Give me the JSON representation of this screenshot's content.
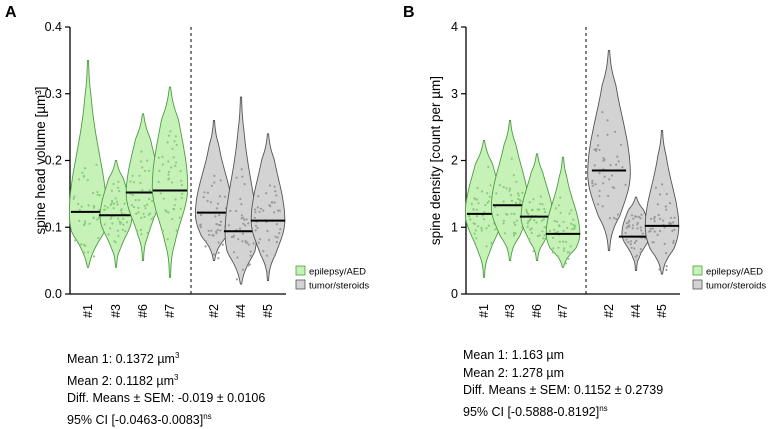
{
  "colors": {
    "epilepsy": "#c6f2b8",
    "epilepsy_stroke": "#4c9c40",
    "tumor": "#d3d3d3",
    "tumor_stroke": "#555555",
    "dot_green": "#8acb7c",
    "dot_grey": "#999999"
  },
  "chart_data": [
    {
      "panel": "A",
      "type": "violin",
      "ylabel": "spine head volume [µm³]",
      "ylim": [
        0,
        0.4
      ],
      "yticks": [
        "0.0",
        "0.1",
        "0.2",
        "0.3",
        "0.4"
      ],
      "ytick_values": [
        0,
        0.1,
        0.2,
        0.3,
        0.4
      ],
      "legend": [
        {
          "label": "epilepsy/AED",
          "group": "epilepsy"
        },
        {
          "label": "tumor/steroids",
          "group": "tumor"
        }
      ],
      "groups": [
        {
          "label": "#1",
          "group": "epilepsy",
          "median": 0.123,
          "min": 0.04,
          "max": 0.35,
          "peak": 0.12,
          "wscale": 1.0
        },
        {
          "label": "#3",
          "group": "epilepsy",
          "median": 0.118,
          "min": 0.04,
          "max": 0.2,
          "peak": 0.115,
          "wscale": 0.85
        },
        {
          "label": "#6",
          "group": "epilepsy",
          "median": 0.152,
          "min": 0.05,
          "max": 0.27,
          "peak": 0.15,
          "wscale": 0.9
        },
        {
          "label": "#7",
          "group": "epilepsy",
          "median": 0.155,
          "min": 0.025,
          "max": 0.31,
          "peak": 0.16,
          "wscale": 0.95
        },
        {
          "label": "#2",
          "group": "tumor",
          "median": 0.122,
          "min": 0.05,
          "max": 0.26,
          "peak": 0.12,
          "wscale": 1.0
        },
        {
          "label": "#4",
          "group": "tumor",
          "median": 0.094,
          "min": 0.015,
          "max": 0.295,
          "peak": 0.09,
          "wscale": 0.85
        },
        {
          "label": "#5",
          "group": "tumor",
          "median": 0.11,
          "min": 0.02,
          "max": 0.24,
          "peak": 0.11,
          "wscale": 0.9
        }
      ],
      "stats": {
        "mean1": "Mean 1: 0.1372 µm",
        "mean2": "Mean 2: 0.1182 µm",
        "diff": "Diff. Means ± SEM: -0.019 ± 0.0106",
        "ci": "95% CI [-0.0463-0.0083]",
        "ci_sup": "ns"
      }
    },
    {
      "panel": "B",
      "type": "violin",
      "ylabel": "spine density [count per µm]",
      "ylim": [
        0,
        4
      ],
      "yticks": [
        "0",
        "1",
        "2",
        "3",
        "4"
      ],
      "ytick_values": [
        0,
        1,
        2,
        3,
        4
      ],
      "legend": [
        {
          "label": "epilepsy/AED",
          "group": "epilepsy"
        },
        {
          "label": "tumor/steroids",
          "group": "tumor"
        }
      ],
      "groups": [
        {
          "label": "#1",
          "group": "epilepsy",
          "median": 1.2,
          "min": 0.25,
          "max": 2.3,
          "peak": 1.2,
          "wscale": 1.0
        },
        {
          "label": "#3",
          "group": "epilepsy",
          "median": 1.33,
          "min": 0.5,
          "max": 2.6,
          "peak": 1.3,
          "wscale": 1.0
        },
        {
          "label": "#6",
          "group": "epilepsy",
          "median": 1.16,
          "min": 0.5,
          "max": 2.1,
          "peak": 1.15,
          "wscale": 0.85
        },
        {
          "label": "#7",
          "group": "epilepsy",
          "median": 0.9,
          "min": 0.4,
          "max": 2.05,
          "peak": 0.9,
          "wscale": 0.9
        },
        {
          "label": "#2",
          "group": "tumor",
          "median": 1.85,
          "min": 0.65,
          "max": 3.65,
          "peak": 1.8,
          "wscale": 1.15
        },
        {
          "label": "#4",
          "group": "tumor",
          "median": 0.86,
          "min": 0.35,
          "max": 1.45,
          "peak": 0.9,
          "wscale": 0.75
        },
        {
          "label": "#5",
          "group": "tumor",
          "median": 1.02,
          "min": 0.3,
          "max": 2.45,
          "peak": 1.0,
          "wscale": 0.9
        }
      ],
      "stats": {
        "mean1": "Mean 1: 1.163 µm",
        "mean2": "Mean 2: 1.278 µm",
        "diff": "Diff. Means ± SEM: 0.1152 ± 0.2739",
        "ci": "95% CI [-0.5888-0.8192]",
        "ci_sup": "ns"
      }
    }
  ],
  "panel_labels": [
    "A",
    "B"
  ],
  "superscript_three": "3"
}
